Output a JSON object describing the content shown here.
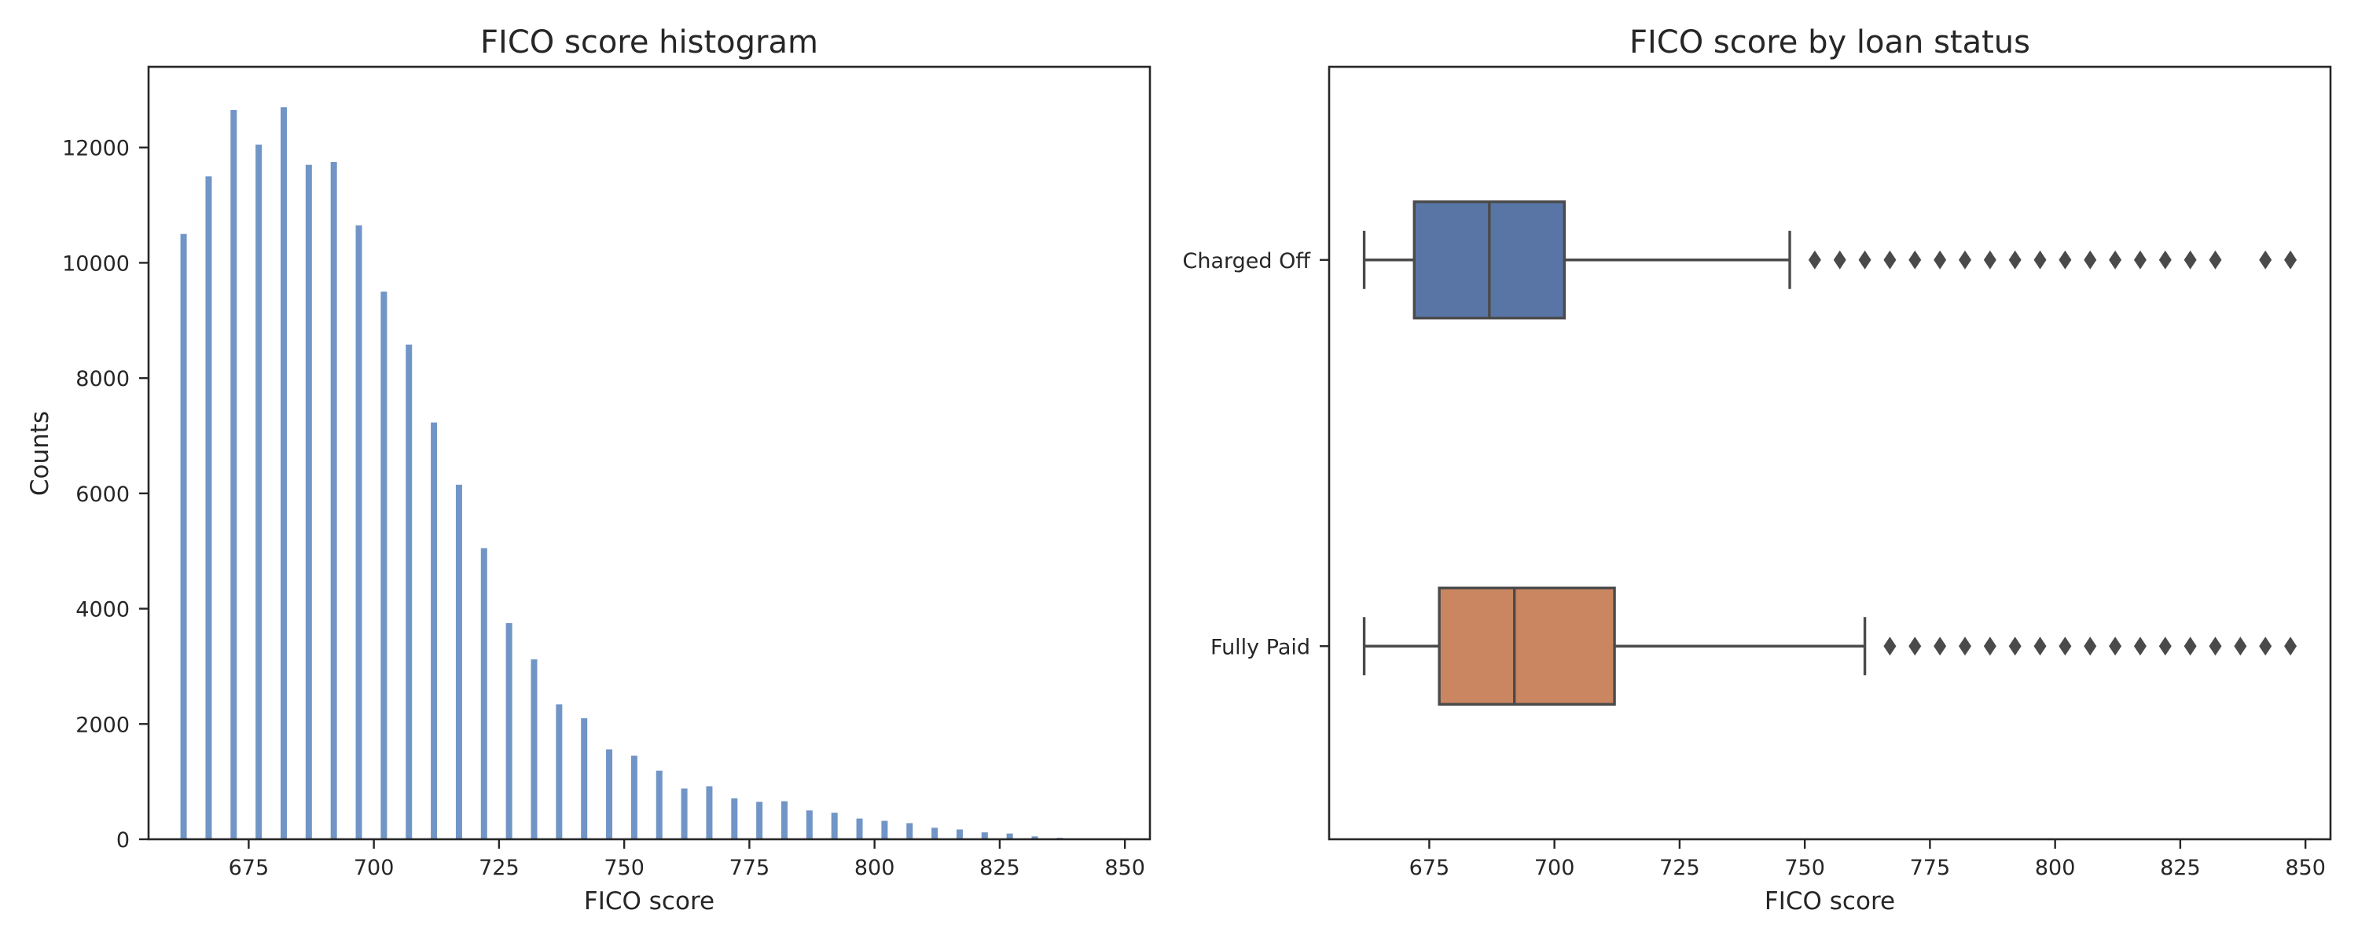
{
  "chart_data": [
    {
      "type": "bar",
      "title": "FICO score histogram",
      "xlabel": "FICO score",
      "ylabel": "Counts",
      "xlim": [
        655,
        855
      ],
      "ylim": [
        0,
        13400
      ],
      "xticks": [
        675,
        700,
        725,
        750,
        775,
        800,
        825,
        850
      ],
      "yticks": [
        0,
        2000,
        4000,
        6000,
        8000,
        10000,
        12000
      ],
      "bar_color": "#7195c6",
      "x": [
        662,
        667,
        672,
        677,
        682,
        687,
        692,
        697,
        702,
        707,
        712,
        717,
        722,
        727,
        732,
        737,
        742,
        747,
        752,
        757,
        762,
        767,
        772,
        777,
        782,
        787,
        792,
        797,
        802,
        807,
        812,
        817,
        822,
        827,
        832,
        837,
        842,
        847
      ],
      "values": [
        10500,
        11500,
        12650,
        12050,
        12700,
        11700,
        11750,
        10650,
        9500,
        8580,
        7230,
        6150,
        5050,
        3750,
        3120,
        2340,
        2100,
        1560,
        1450,
        1190,
        880,
        920,
        710,
        650,
        660,
        500,
        460,
        360,
        320,
        280,
        200,
        170,
        120,
        100,
        50,
        25,
        10,
        5
      ]
    },
    {
      "type": "box",
      "title": "FICO score by loan status",
      "xlabel": "FICO score",
      "ylabel": "",
      "xlim": [
        655,
        855
      ],
      "xticks": [
        675,
        700,
        725,
        750,
        775,
        800,
        825,
        850
      ],
      "categories": [
        "Charged Off",
        "Fully Paid"
      ],
      "series": [
        {
          "label": "Charged Off",
          "color": "#5875a6",
          "whisker_low": 662,
          "q1": 672,
          "median": 687,
          "q3": 702,
          "whisker_high": 747,
          "outliers": [
            752,
            757,
            762,
            767,
            772,
            777,
            782,
            787,
            792,
            797,
            802,
            807,
            812,
            817,
            822,
            827,
            832,
            842,
            847
          ]
        },
        {
          "label": "Fully Paid",
          "color": "#ca8660",
          "whisker_low": 662,
          "q1": 677,
          "median": 692,
          "q3": 712,
          "whisker_high": 762,
          "outliers": [
            767,
            772,
            777,
            782,
            787,
            792,
            797,
            802,
            807,
            812,
            817,
            822,
            827,
            832,
            837,
            842,
            847
          ]
        }
      ]
    }
  ]
}
